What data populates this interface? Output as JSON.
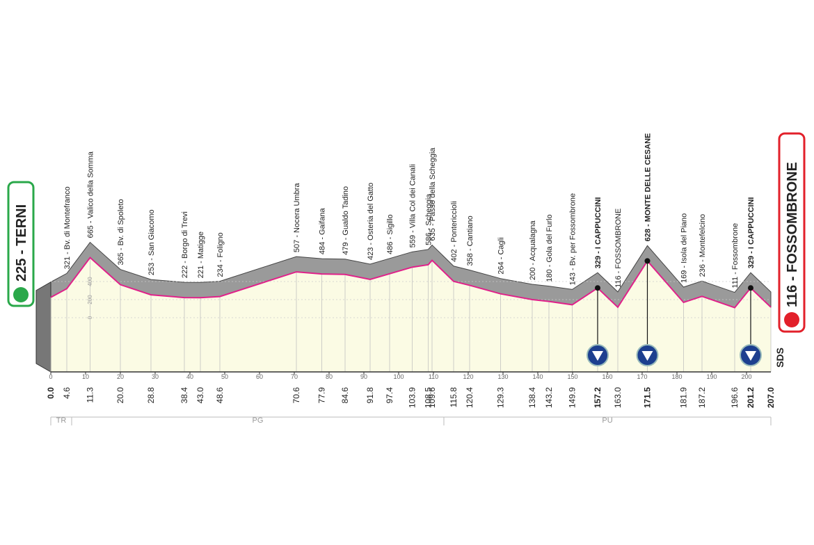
{
  "chart_data": {
    "type": "profile",
    "x": [
      0.0,
      4.6,
      11.3,
      20.0,
      28.8,
      38.4,
      43.0,
      48.6,
      70.6,
      77.9,
      84.6,
      91.8,
      97.4,
      103.9,
      108.5,
      109.6,
      115.8,
      120.4,
      129.3,
      138.4,
      143.2,
      149.9,
      157.2,
      163.0,
      171.5,
      181.9,
      187.2,
      196.6,
      201.2,
      207.0
    ],
    "x_labels": [
      "0.0",
      "4.6",
      "11.3",
      "20.0",
      "28.8",
      "38.4",
      "43.0",
      "48.6",
      "70.6",
      "77.9",
      "84.6",
      "91.8",
      "97.4",
      "103.9",
      "108.5",
      "109.6",
      "115.8",
      "120.4",
      "129.3",
      "138.4",
      "143.2",
      "149.9",
      "157.2",
      "163.0",
      "171.5",
      "181.9",
      "187.2",
      "196.6",
      "201.2",
      "207.0"
    ],
    "values": [
      225,
      321,
      665,
      365,
      253,
      222,
      221,
      234,
      507,
      484,
      479,
      423,
      486,
      559,
      586,
      635,
      402,
      358,
      264,
      200,
      180,
      143,
      329,
      116,
      628,
      169,
      236,
      111,
      329,
      116
    ],
    "value_labels": [
      "225 - TERNI",
      "321 - Bv. di Montefranco",
      "665 - Valico della Somma",
      "365 - Bv. di Spoleto",
      "253 - San Giacomo",
      "222 - Borgo di Trevi",
      "221 - Matigge",
      "234 - Foligno",
      "507 - Nocera Umbra",
      "484 - Gaifana",
      "479 - Gualdo Tadino",
      "423 - Osteria del Gatto",
      "486 - Sigillo",
      "559 - Villa Col dei Canali",
      "586 - Scheggia",
      "635 - Passo della Scheggia",
      "402 - Pontericcioli",
      "358 - Cantiano",
      "264 - Cagli",
      "200 - Acqualagna",
      "180 - Gola del Furlo",
      "143 - Bv. per Fossombrone",
      "329 - I CAPPUCCINI",
      "116 - FOSSOMBRONE",
      "628 - MONTE DELLE CESANE",
      "169 - Isola del Piano",
      "236 - Montefelcino",
      "111 - Fossombrone",
      "329 - I CAPPUCCINI",
      "116 - FOSSOMBRONE"
    ],
    "kom": [
      false,
      false,
      false,
      false,
      false,
      false,
      false,
      false,
      false,
      false,
      false,
      false,
      false,
      false,
      false,
      false,
      false,
      false,
      false,
      false,
      false,
      false,
      true,
      false,
      true,
      false,
      false,
      false,
      true,
      false
    ],
    "color": "#e0218a",
    "xlim": [
      0,
      207
    ],
    "xticks": [
      0,
      10,
      20,
      30,
      40,
      50,
      60,
      70,
      80,
      90,
      100,
      110,
      120,
      130,
      140,
      150,
      160,
      170,
      180,
      190,
      200
    ],
    "ylim": [
      -600,
      1200
    ],
    "yticks": [
      0,
      200,
      400
    ],
    "regions": [
      {
        "label": "TR",
        "from": 0,
        "to": 6
      },
      {
        "label": "PG",
        "from": 6,
        "to": 113
      },
      {
        "label": "PU",
        "from": 113,
        "to": 207
      }
    ],
    "logo": "SDS"
  }
}
